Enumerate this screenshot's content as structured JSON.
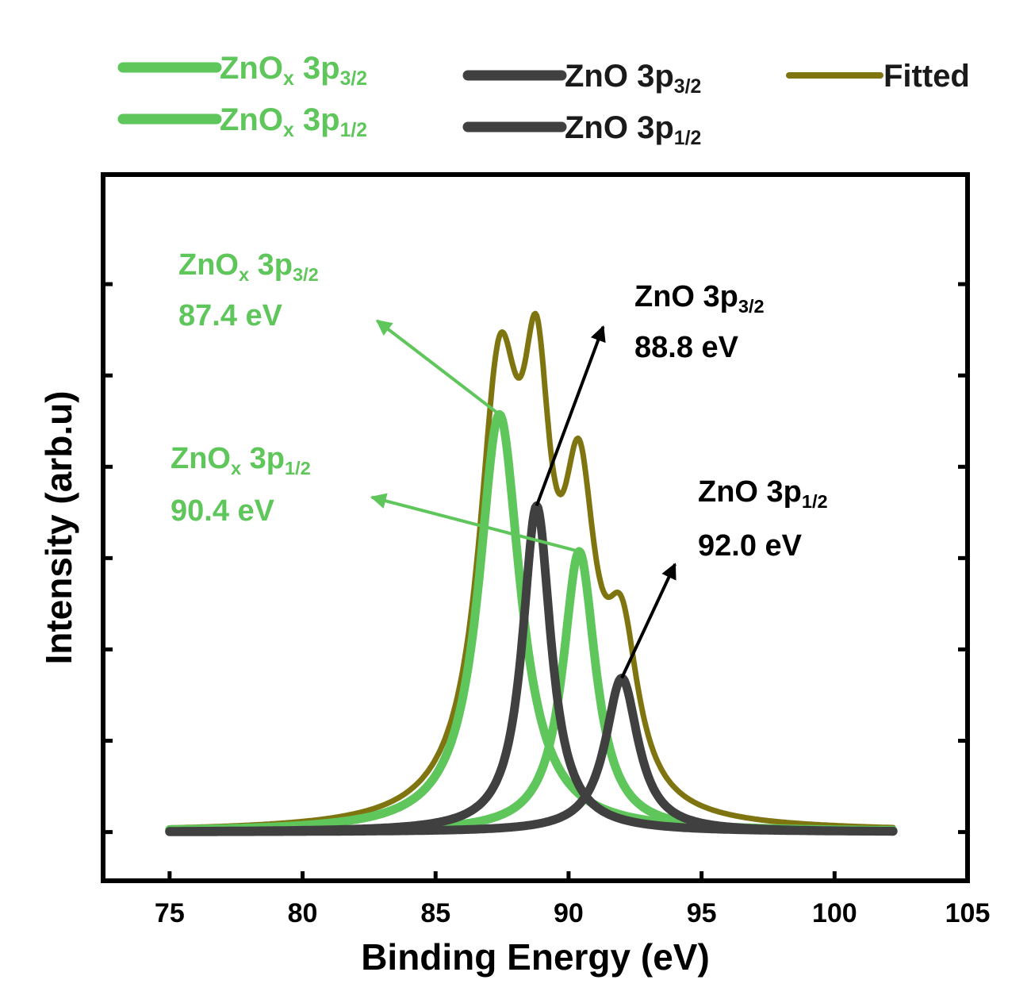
{
  "chart_data": {
    "type": "line",
    "title": "",
    "xlabel": "Binding Energy (eV)",
    "ylabel": "Intensity (arb.u)",
    "xlim": [
      72.5,
      105
    ],
    "ylim": [
      -0.08,
      1.08
    ],
    "xticks": [
      75,
      80,
      85,
      90,
      95,
      100,
      105
    ],
    "xtick_labels": [
      "75",
      "80",
      "85",
      "90",
      "95",
      "100",
      "105"
    ],
    "yticks": [
      0,
      0.15,
      0.3,
      0.45,
      0.6,
      0.75,
      0.9
    ],
    "ytick_labels_visible": false,
    "data_range": [
      75,
      102.2
    ],
    "baseline": 0.0,
    "series": [
      {
        "key": "zox32",
        "name": "ZnOx 3p3/2",
        "color": "#5ec65a",
        "center": 87.4,
        "height": 0.686,
        "hwhm": 0.95
      },
      {
        "key": "zox12",
        "name": "ZnOx 3p1/2",
        "color": "#5ec65a",
        "center": 90.4,
        "height": 0.461,
        "hwhm": 0.75
      },
      {
        "key": "zo32",
        "name": "ZnO 3p3/2",
        "color": "#404040",
        "center": 88.8,
        "height": 0.536,
        "hwhm": 0.65
      },
      {
        "key": "zo12",
        "name": "ZnO 3p1/2",
        "color": "#404040",
        "center": 92.0,
        "height": 0.253,
        "hwhm": 0.75
      },
      {
        "key": "fitted",
        "name": "Fitted",
        "color": "#7f7510",
        "sum_of": [
          "zox32",
          "zox12",
          "zo32",
          "zo12"
        ]
      }
    ],
    "legend": {
      "position": "top, above plot",
      "items": [
        {
          "key": "zox32",
          "base": "ZnOx 3p",
          "sub": "3/2",
          "has_x": true,
          "color": "#5ec65a"
        },
        {
          "key": "zo32",
          "base": "ZnO 3p",
          "sub": "3/2",
          "has_x": false,
          "color": "#404040"
        },
        {
          "key": "fitted",
          "base": "Fitted",
          "sub": "",
          "has_x": false,
          "color": "#7f7510"
        },
        {
          "key": "zox12",
          "base": "ZnOx 3p",
          "sub": "1/2",
          "has_x": true,
          "color": "#5ec65a"
        },
        {
          "key": "zo12",
          "base": "ZnO 3p",
          "sub": "1/2",
          "has_x": false,
          "color": "#404040"
        }
      ]
    },
    "annotations": [
      {
        "key": "zox32",
        "name": "ZnOx 3p",
        "sub": "3/2",
        "has_x": true,
        "energy": "87.4 eV",
        "color": "#5ec65a",
        "target": [
          87.4,
          0.686
        ],
        "arrow_to": [
          82.8,
          0.84
        ]
      },
      {
        "key": "zox12",
        "name": "ZnOx 3p",
        "sub": "1/2",
        "has_x": true,
        "energy": "90.4 eV",
        "color": "#5ec65a",
        "target": [
          90.4,
          0.461
        ],
        "arrow_to": [
          82.6,
          0.55
        ]
      },
      {
        "key": "zo32",
        "name": "ZnO 3p",
        "sub": "3/2",
        "has_x": false,
        "energy": "88.8 eV",
        "color": "#000000",
        "target": [
          88.8,
          0.536
        ],
        "arrow_to": [
          91.3,
          0.83
        ]
      },
      {
        "key": "zo12",
        "name": "ZnO 3p",
        "sub": "1/2",
        "has_x": false,
        "energy": "92.0 eV",
        "color": "#000000",
        "target": [
          92.0,
          0.253
        ],
        "arrow_to": [
          94.0,
          0.44
        ]
      }
    ]
  }
}
